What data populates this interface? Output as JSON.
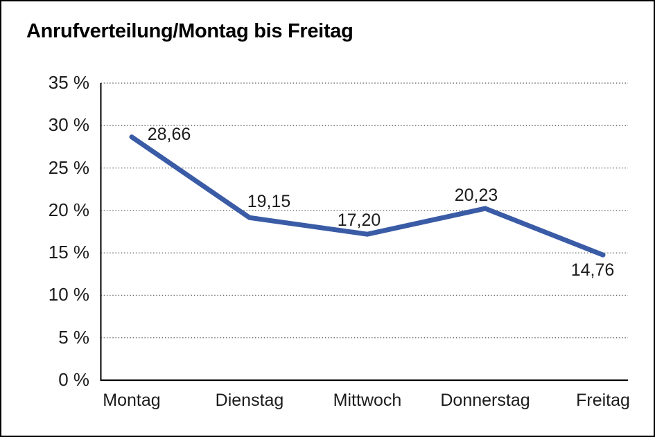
{
  "window": {
    "background": "#ffffff",
    "border_color": "#000000"
  },
  "chart_data": {
    "type": "line",
    "title": "Anrufverteilung/Montag bis Freitag",
    "categories": [
      "Montag",
      "Dienstag",
      "Mittwoch",
      "Donnerstag",
      "Freitag"
    ],
    "series": [
      {
        "name": "Anrufverteilung",
        "values": [
          28.66,
          19.15,
          17.2,
          20.23,
          14.76
        ]
      }
    ],
    "point_labels": [
      "28,66",
      "19,15",
      "17,20",
      "20,23",
      "14,76"
    ],
    "xlabel": "",
    "ylabel": "",
    "ylim": [
      0,
      35
    ],
    "y_ticks": [
      0,
      5,
      10,
      15,
      20,
      25,
      30,
      35
    ],
    "y_tick_labels": [
      "0 %",
      "5 %",
      "10 %",
      "15 %",
      "20 %",
      "25 %",
      "30 %",
      "35 %"
    ],
    "grid": "horizontal-dotted",
    "legend_position": "none",
    "colors": {
      "line": "#3a5ba6",
      "gridline": "#666666",
      "axis": "#000000",
      "text": "#1c1c1c"
    }
  }
}
